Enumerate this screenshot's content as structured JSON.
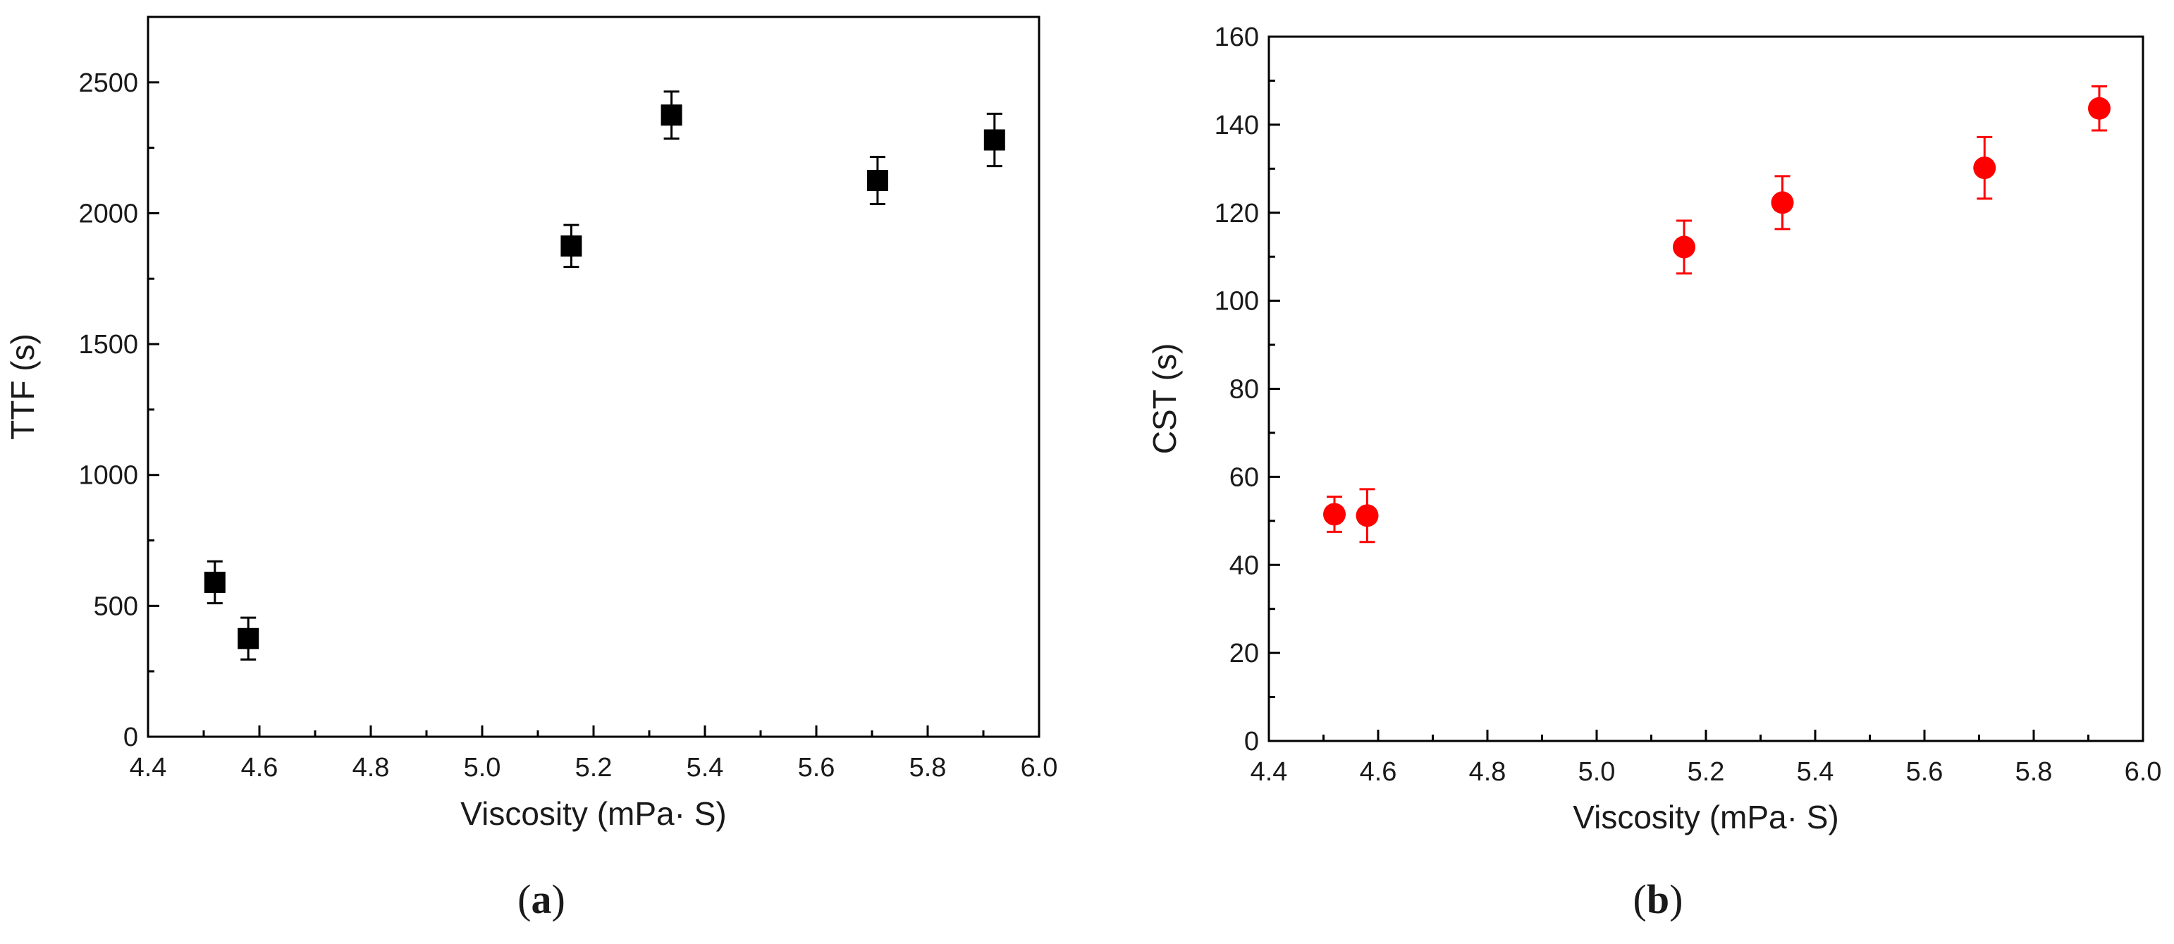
{
  "chart_data": [
    {
      "type": "scatter",
      "panel_label": "a",
      "xlabel": "Viscosity (mPa· S)",
      "ylabel": "TTF (s)",
      "xlim": [
        4.4,
        6.0
      ],
      "ylim": [
        0,
        2750
      ],
      "xticks": [
        "4.4",
        "4.6",
        "4.8",
        "5.0",
        "5.2",
        "5.4",
        "5.6",
        "5.8",
        "6.0"
      ],
      "yticks": [
        "0",
        "500",
        "1000",
        "1500",
        "2000",
        "2500"
      ],
      "marker": "square",
      "color": "#000000",
      "series": [
        {
          "x": [
            4.52,
            4.58,
            5.16,
            5.34,
            5.71,
            5.92
          ],
          "y": [
            590,
            375,
            1875,
            2375,
            2125,
            2280
          ],
          "error": [
            80,
            80,
            80,
            90,
            90,
            100
          ]
        }
      ]
    },
    {
      "type": "scatter",
      "panel_label": "b",
      "xlabel": "Viscosity (mPa· S)",
      "ylabel": "CST (s)",
      "xlim": [
        4.4,
        6.0
      ],
      "ylim": [
        0,
        160
      ],
      "xticks": [
        "4.4",
        "4.6",
        "4.8",
        "5.0",
        "5.2",
        "5.4",
        "5.6",
        "5.8",
        "6.0"
      ],
      "yticks": [
        "0",
        "20",
        "40",
        "60",
        "80",
        "100",
        "120",
        "140",
        "160"
      ],
      "marker": "circle",
      "color": "#ff0000",
      "series": [
        {
          "x": [
            4.52,
            4.58,
            5.16,
            5.34,
            5.71,
            5.92
          ],
          "y": [
            51.5,
            51.2,
            112.2,
            122.3,
            130.2,
            143.7
          ],
          "error": [
            4,
            6,
            6,
            6,
            7,
            5
          ]
        }
      ]
    }
  ]
}
